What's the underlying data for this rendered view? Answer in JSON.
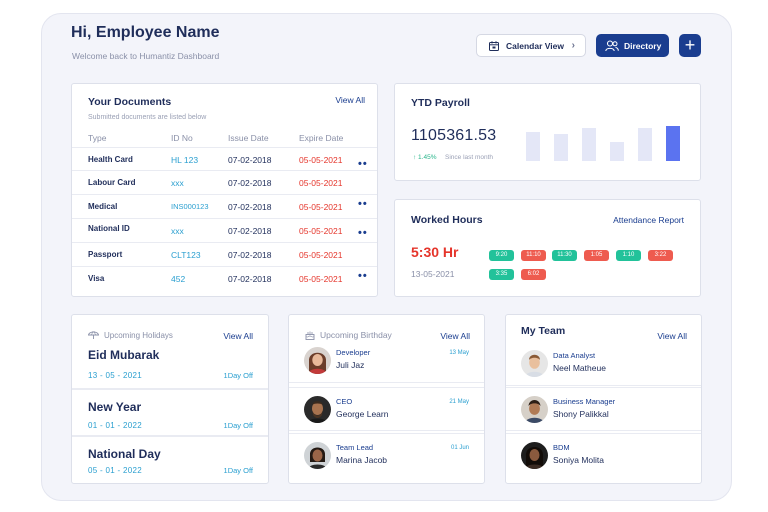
{
  "header": {
    "greeting": "Hi, Employee Name",
    "subtitle": "Welcome back to Humantiz Dashboard",
    "calendar_button": "Calendar View",
    "directory_button": "Directory",
    "add_button": "+"
  },
  "documents": {
    "title": "Your Documents",
    "view_all": "View All",
    "subtitle": "Submitted documents are listed below",
    "columns": [
      "Type",
      "ID No",
      "Issue Date",
      "Expire Date"
    ],
    "rows": [
      {
        "type": "Health Card",
        "id": "HL 123",
        "issue": "07-02-2018",
        "expire": "05-05-2021",
        "menu": "••"
      },
      {
        "type": "Labour Card",
        "id": "xxx",
        "issue": "07-02-2018",
        "expire": "05-05-2021",
        "menu": ""
      },
      {
        "type": "Medical",
        "id": "INS000123",
        "issue": "07-02-2018",
        "expire": "05-05-2021",
        "menu": "••"
      },
      {
        "type": "National ID",
        "id": "xxx",
        "issue": "07-02-2018",
        "expire": "05-05-2021",
        "menu": "••"
      },
      {
        "type": "Passport",
        "id": "CLT123",
        "issue": "07-02-2018",
        "expire": "05-05-2021",
        "menu": ""
      },
      {
        "type": "Visa",
        "id": "452",
        "issue": "07-02-2018",
        "expire": "05-05-2021",
        "menu": "••"
      }
    ]
  },
  "payroll": {
    "title": "YTD Payroll",
    "amount": "1105361.53",
    "change": "↑ 1.45%",
    "since": "Since last month",
    "bar_levels": [
      0.83,
      0.77,
      0.93,
      0.53,
      0.93,
      1.0
    ],
    "bar_color": "#e4e7f7",
    "bar_highlight_color": "#5b73f0"
  },
  "hours": {
    "title": "Worked Hours",
    "report_link": "Attendance Report",
    "total": "5:30 Hr",
    "date": "13-05-2021",
    "pills_row1": [
      {
        "label": "9:20",
        "status": "green"
      },
      {
        "label": "11:10",
        "status": "red"
      },
      {
        "label": "11:30",
        "status": "green"
      },
      {
        "label": "1:05",
        "status": "red"
      },
      {
        "label": "1:10",
        "status": "green"
      },
      {
        "label": "3:22",
        "status": "red"
      }
    ],
    "pills_row2": [
      {
        "label": "3:35",
        "status": "green"
      },
      {
        "label": "6:02",
        "status": "red"
      }
    ]
  },
  "holidays": {
    "title": "Upcoming Holidays",
    "view_all": "View All",
    "items": [
      {
        "name": "Eid Mubarak",
        "date": "13 - 05 - 2021",
        "off": "1Day Off"
      },
      {
        "name": "New Year",
        "date": "01 - 01 - 2022",
        "off": "1Day Off"
      },
      {
        "name": "National Day",
        "date": "05 - 01 - 2022",
        "off": "1Day Off"
      }
    ]
  },
  "birthday": {
    "title": "Upcoming Birthday",
    "view_all": "View All",
    "items": [
      {
        "role": "Developer",
        "name": "Juli Jaz",
        "date": "13 May"
      },
      {
        "role": "CEO",
        "name": "George Learn",
        "date": "21 May"
      },
      {
        "role": "Team Lead",
        "name": "Marina Jacob",
        "date": "01 Jun"
      }
    ]
  },
  "team": {
    "title": "My Team",
    "view_all": "View All",
    "items": [
      {
        "role": "Data Analyst",
        "name": "Neel Matheue"
      },
      {
        "role": "Business Manager",
        "name": "Shony Palikkal"
      },
      {
        "role": "BDM",
        "name": "Soniya Molita"
      }
    ]
  },
  "colors": {
    "primary": "#1a3d8f",
    "accent_blue": "#2a9fd0",
    "danger": "#e5352b",
    "success": "#22c29a"
  }
}
